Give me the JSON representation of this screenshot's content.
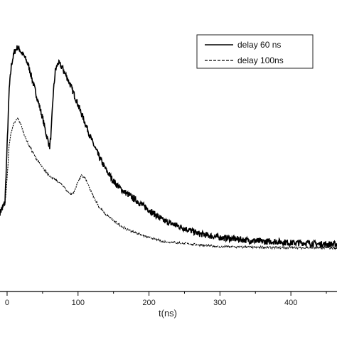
{
  "chart_data": {
    "type": "line",
    "title": "",
    "xlabel": "t(ns)",
    "ylabel": "",
    "xlim": [
      -10,
      465
    ],
    "ylim": [
      0,
      1.0
    ],
    "x_ticks": [
      0,
      100,
      200,
      300,
      400
    ],
    "x_tick_labels": [
      "0",
      "100",
      "200",
      "300",
      "400"
    ],
    "grid": false,
    "legend_position": "top-right",
    "series": [
      {
        "name": "delay 60 ns",
        "style": "solid",
        "x": [
          -10,
          -3,
          0,
          3,
          6,
          10,
          15,
          20,
          25,
          30,
          35,
          40,
          45,
          50,
          55,
          60,
          62,
          65,
          68,
          72,
          78,
          85,
          90,
          100,
          110,
          120,
          130,
          140,
          150,
          160,
          170,
          180,
          190,
          200,
          210,
          220,
          230,
          240,
          250,
          260,
          270,
          280,
          300,
          320,
          340,
          360,
          380,
          400,
          420,
          440,
          465
        ],
        "y": [
          0.3,
          0.34,
          0.55,
          0.77,
          0.86,
          0.91,
          0.93,
          0.91,
          0.89,
          0.86,
          0.81,
          0.76,
          0.71,
          0.66,
          0.6,
          0.55,
          0.6,
          0.75,
          0.84,
          0.87,
          0.85,
          0.81,
          0.78,
          0.71,
          0.64,
          0.57,
          0.51,
          0.46,
          0.42,
          0.39,
          0.37,
          0.35,
          0.33,
          0.31,
          0.29,
          0.27,
          0.26,
          0.25,
          0.24,
          0.23,
          0.22,
          0.215,
          0.205,
          0.2,
          0.195,
          0.19,
          0.19,
          0.185,
          0.185,
          0.18,
          0.18
        ]
      },
      {
        "name": "delay 100ns",
        "style": "dashed",
        "x": [
          -10,
          -3,
          0,
          3,
          6,
          10,
          15,
          20,
          25,
          30,
          40,
          50,
          60,
          70,
          80,
          85,
          90,
          95,
          100,
          105,
          110,
          115,
          120,
          130,
          140,
          150,
          160,
          170,
          180,
          190,
          200,
          220,
          240,
          260,
          280,
          300,
          320,
          340,
          360,
          380,
          400,
          420,
          440,
          465
        ],
        "y": [
          0.3,
          0.33,
          0.43,
          0.56,
          0.61,
          0.64,
          0.66,
          0.63,
          0.59,
          0.56,
          0.51,
          0.47,
          0.44,
          0.42,
          0.4,
          0.38,
          0.37,
          0.38,
          0.42,
          0.44,
          0.43,
          0.4,
          0.37,
          0.32,
          0.29,
          0.27,
          0.25,
          0.235,
          0.225,
          0.215,
          0.205,
          0.19,
          0.185,
          0.18,
          0.175,
          0.17,
          0.17,
          0.168,
          0.168,
          0.167,
          0.167,
          0.166,
          0.166,
          0.165
        ]
      }
    ]
  }
}
